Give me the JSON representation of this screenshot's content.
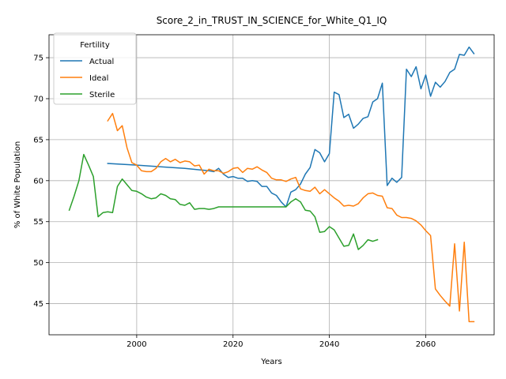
{
  "chart_data": {
    "type": "line",
    "title": "Score_2_in_TRUST_IN_SCIENCE_for_White_Q1_IQ",
    "xlabel": "Years",
    "ylabel": "% of White Population",
    "xlim": [
      1981.8,
      2074.2
    ],
    "ylim": [
      41.2,
      77.8
    ],
    "xticks": [
      2000,
      2020,
      2040,
      2060
    ],
    "yticks": [
      45,
      50,
      55,
      60,
      65,
      70,
      75
    ],
    "grid": true,
    "legend": {
      "title": "Fertility",
      "position": "upper-left"
    },
    "series": [
      {
        "name": "Actual",
        "color": "#1f77b4",
        "points": [
          [
            1994,
            62.1
          ],
          [
            2000,
            61.9
          ],
          [
            2005,
            61.7
          ],
          [
            2010,
            61.5
          ],
          [
            2015,
            61.2
          ],
          [
            2016,
            61.1
          ],
          [
            2017,
            61.5
          ],
          [
            2018,
            60.8
          ],
          [
            2019,
            60.4
          ],
          [
            2020,
            60.5
          ],
          [
            2021,
            60.3
          ],
          [
            2022,
            60.3
          ],
          [
            2023,
            59.9
          ],
          [
            2024,
            60.0
          ],
          [
            2025,
            59.9
          ],
          [
            2026,
            59.3
          ],
          [
            2027,
            59.3
          ],
          [
            2028,
            58.5
          ],
          [
            2029,
            58.2
          ],
          [
            2030,
            57.4
          ],
          [
            2031,
            56.8
          ],
          [
            2032,
            58.6
          ],
          [
            2033,
            58.9
          ],
          [
            2034,
            59.6
          ],
          [
            2035,
            60.8
          ],
          [
            2036,
            61.6
          ],
          [
            2037,
            63.8
          ],
          [
            2038,
            63.4
          ],
          [
            2039,
            62.3
          ],
          [
            2040,
            63.3
          ],
          [
            2041,
            70.8
          ],
          [
            2042,
            70.5
          ],
          [
            2043,
            67.7
          ],
          [
            2044,
            68.1
          ],
          [
            2045,
            66.4
          ],
          [
            2046,
            66.9
          ],
          [
            2047,
            67.6
          ],
          [
            2048,
            67.8
          ],
          [
            2049,
            69.6
          ],
          [
            2050,
            70.0
          ],
          [
            2051,
            71.9
          ],
          [
            2052,
            59.4
          ],
          [
            2053,
            60.3
          ],
          [
            2054,
            59.8
          ],
          [
            2055,
            60.4
          ],
          [
            2056,
            73.6
          ],
          [
            2057,
            72.7
          ],
          [
            2058,
            73.9
          ],
          [
            2059,
            71.2
          ],
          [
            2060,
            72.9
          ],
          [
            2061,
            70.3
          ],
          [
            2062,
            72.0
          ],
          [
            2063,
            71.4
          ],
          [
            2064,
            72.1
          ],
          [
            2065,
            73.2
          ],
          [
            2066,
            73.6
          ],
          [
            2067,
            75.4
          ],
          [
            2068,
            75.3
          ],
          [
            2069,
            76.3
          ],
          [
            2070,
            75.5
          ]
        ]
      },
      {
        "name": "Ideal",
        "color": "#ff7f0e",
        "points": [
          [
            1994,
            67.3
          ],
          [
            1995,
            68.2
          ],
          [
            1996,
            66.1
          ],
          [
            1997,
            66.7
          ],
          [
            1998,
            64.0
          ],
          [
            1999,
            62.2
          ],
          [
            2000,
            61.9
          ],
          [
            2001,
            61.2
          ],
          [
            2002,
            61.1
          ],
          [
            2003,
            61.1
          ],
          [
            2004,
            61.5
          ],
          [
            2005,
            62.3
          ],
          [
            2006,
            62.7
          ],
          [
            2007,
            62.3
          ],
          [
            2008,
            62.6
          ],
          [
            2009,
            62.2
          ],
          [
            2010,
            62.4
          ],
          [
            2011,
            62.3
          ],
          [
            2012,
            61.8
          ],
          [
            2013,
            61.9
          ],
          [
            2014,
            60.8
          ],
          [
            2015,
            61.4
          ],
          [
            2016,
            61.2
          ],
          [
            2017,
            61.2
          ],
          [
            2018,
            60.9
          ],
          [
            2019,
            61.1
          ],
          [
            2020,
            61.5
          ],
          [
            2021,
            61.6
          ],
          [
            2022,
            61.0
          ],
          [
            2023,
            61.5
          ],
          [
            2024,
            61.4
          ],
          [
            2025,
            61.7
          ],
          [
            2026,
            61.3
          ],
          [
            2027,
            61.0
          ],
          [
            2028,
            60.3
          ],
          [
            2029,
            60.1
          ],
          [
            2030,
            60.1
          ],
          [
            2031,
            59.9
          ],
          [
            2032,
            60.2
          ],
          [
            2033,
            60.4
          ],
          [
            2034,
            59.0
          ],
          [
            2035,
            58.8
          ],
          [
            2036,
            58.7
          ],
          [
            2037,
            59.2
          ],
          [
            2038,
            58.4
          ],
          [
            2039,
            58.9
          ],
          [
            2040,
            58.4
          ],
          [
            2041,
            57.9
          ],
          [
            2042,
            57.5
          ],
          [
            2043,
            56.9
          ],
          [
            2044,
            57.0
          ],
          [
            2045,
            56.9
          ],
          [
            2046,
            57.2
          ],
          [
            2047,
            57.9
          ],
          [
            2048,
            58.4
          ],
          [
            2049,
            58.5
          ],
          [
            2050,
            58.2
          ],
          [
            2051,
            58.1
          ],
          [
            2052,
            56.7
          ],
          [
            2053,
            56.6
          ],
          [
            2054,
            55.8
          ],
          [
            2055,
            55.5
          ],
          [
            2056,
            55.5
          ],
          [
            2057,
            55.4
          ],
          [
            2058,
            55.1
          ],
          [
            2059,
            54.6
          ],
          [
            2060,
            53.9
          ],
          [
            2061,
            53.3
          ],
          [
            2062,
            46.8
          ],
          [
            2063,
            46.0
          ],
          [
            2064,
            45.3
          ],
          [
            2065,
            44.7
          ],
          [
            2066,
            52.3
          ],
          [
            2067,
            44.1
          ],
          [
            2068,
            52.5
          ],
          [
            2069,
            42.8
          ],
          [
            2070,
            42.8
          ]
        ]
      },
      {
        "name": "Sterile",
        "color": "#2ca02c",
        "points": [
          [
            1986,
            56.4
          ],
          [
            1987,
            58.1
          ],
          [
            1988,
            60.0
          ],
          [
            1989,
            63.2
          ],
          [
            1990,
            61.9
          ],
          [
            1991,
            60.5
          ],
          [
            1992,
            55.6
          ],
          [
            1993,
            56.1
          ],
          [
            1994,
            56.2
          ],
          [
            1995,
            56.1
          ],
          [
            1996,
            59.3
          ],
          [
            1997,
            60.2
          ],
          [
            1998,
            59.5
          ],
          [
            1999,
            58.8
          ],
          [
            2000,
            58.7
          ],
          [
            2001,
            58.4
          ],
          [
            2002,
            58.0
          ],
          [
            2003,
            57.8
          ],
          [
            2004,
            57.9
          ],
          [
            2005,
            58.4
          ],
          [
            2006,
            58.2
          ],
          [
            2007,
            57.8
          ],
          [
            2008,
            57.7
          ],
          [
            2009,
            57.1
          ],
          [
            2010,
            57.0
          ],
          [
            2011,
            57.3
          ],
          [
            2012,
            56.5
          ],
          [
            2013,
            56.6
          ],
          [
            2014,
            56.6
          ],
          [
            2015,
            56.5
          ],
          [
            2016,
            56.6
          ],
          [
            2017,
            56.8
          ],
          [
            2020,
            56.8
          ],
          [
            2025,
            56.8
          ],
          [
            2030,
            56.8
          ],
          [
            2031,
            56.8
          ],
          [
            2032,
            57.4
          ],
          [
            2033,
            57.8
          ],
          [
            2034,
            57.4
          ],
          [
            2035,
            56.4
          ],
          [
            2036,
            56.3
          ],
          [
            2037,
            55.6
          ],
          [
            2038,
            53.7
          ],
          [
            2039,
            53.8
          ],
          [
            2040,
            54.4
          ],
          [
            2041,
            54.0
          ],
          [
            2042,
            53.0
          ],
          [
            2043,
            52.0
          ],
          [
            2044,
            52.1
          ],
          [
            2045,
            53.5
          ],
          [
            2046,
            51.6
          ],
          [
            2047,
            52.1
          ],
          [
            2048,
            52.8
          ],
          [
            2049,
            52.6
          ],
          [
            2050,
            52.8
          ]
        ]
      }
    ]
  }
}
